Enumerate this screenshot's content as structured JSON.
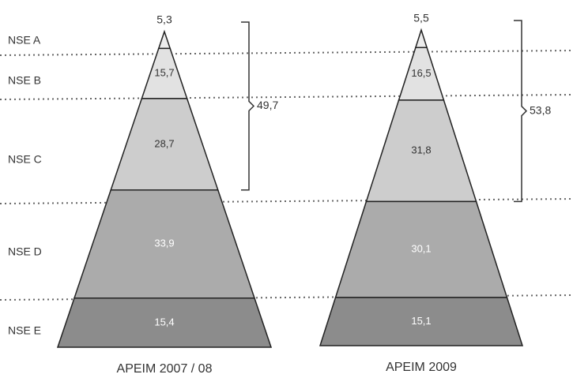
{
  "chart_data": {
    "type": "pyramid",
    "categories": [
      "NSE A",
      "NSE B",
      "NSE C",
      "NSE D",
      "NSE E"
    ],
    "colors": [
      "#ececec",
      "#e2e2e2",
      "#cdcdcd",
      "#ababab",
      "#8c8c8c"
    ],
    "series": [
      {
        "name": "APEIM 2007 / 08",
        "values": [
          5.3,
          15.7,
          28.7,
          33.9,
          15.4
        ],
        "value_labels": [
          "5,3",
          "15,7",
          "28,7",
          "33,9",
          "15,4"
        ],
        "annotation": {
          "value": 49.7,
          "label": "49,7"
        }
      },
      {
        "name": "APEIM 2009",
        "values": [
          5.5,
          16.5,
          31.8,
          30.1,
          15.1
        ],
        "value_labels": [
          "5,5",
          "16,5",
          "31,8",
          "30,1",
          "15,1"
        ],
        "annotation": {
          "value": 53.8,
          "label": "53,8"
        }
      }
    ]
  }
}
